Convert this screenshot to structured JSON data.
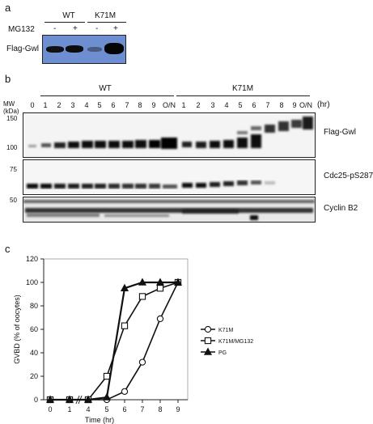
{
  "panel_a": {
    "letter": "a",
    "group_wt": "WT",
    "group_k71m": "K71M",
    "mg132_label": "MG132",
    "mg132_states": [
      "-",
      "+",
      "-",
      "+"
    ],
    "blot_label": "Flag-Gwl",
    "band_intensity": [
      0.75,
      0.85,
      0.35,
      0.95
    ]
  },
  "panel_b": {
    "letter": "b",
    "group_wt": "WT",
    "group_k71m": "K71M",
    "mw_label_1": "MW",
    "mw_label_2": "(kDa)",
    "time_unit": "(hr)",
    "lanes_wt": [
      "0",
      "1",
      "2",
      "3",
      "4",
      "5",
      "6",
      "7",
      "8",
      "9",
      "O/N"
    ],
    "lanes_k71m": [
      "1",
      "2",
      "3",
      "4",
      "5",
      "6",
      "7",
      "8",
      "9",
      "O/N"
    ],
    "blots": [
      {
        "label": "Flag-Gwl",
        "markers": [
          "150",
          "100"
        ]
      },
      {
        "label": "Cdc25-pS287",
        "markers": [
          "75"
        ]
      },
      {
        "label": "Cyclin B2",
        "markers": [
          "50"
        ]
      }
    ]
  },
  "panel_c": {
    "letter": "c",
    "chart_data": {
      "type": "line",
      "title": "",
      "xlabel": "Time (hr)",
      "ylabel": "GVBD (% of oocytes)",
      "x": [
        0,
        1,
        4,
        5,
        6,
        7,
        8,
        9
      ],
      "xlim": [
        0,
        9
      ],
      "ylim": [
        0,
        120
      ],
      "yticks": [
        0,
        20,
        40,
        60,
        80,
        100,
        120
      ],
      "xticks": [
        "0",
        "1",
        "4",
        "5",
        "6",
        "7",
        "8",
        "9"
      ],
      "axis_break": "between 1 and 4",
      "legend_position": "right",
      "series": [
        {
          "name": "K71M",
          "marker": "circle",
          "values": [
            0,
            0,
            0,
            0,
            7,
            32,
            69,
            100
          ]
        },
        {
          "name": "K71M/MG132",
          "marker": "square",
          "values": [
            0,
            0,
            0,
            20,
            63,
            88,
            95,
            100
          ]
        },
        {
          "name": "PG",
          "marker": "triangle",
          "values": [
            0,
            0,
            0,
            2,
            95,
            100,
            100,
            100
          ]
        }
      ]
    }
  }
}
